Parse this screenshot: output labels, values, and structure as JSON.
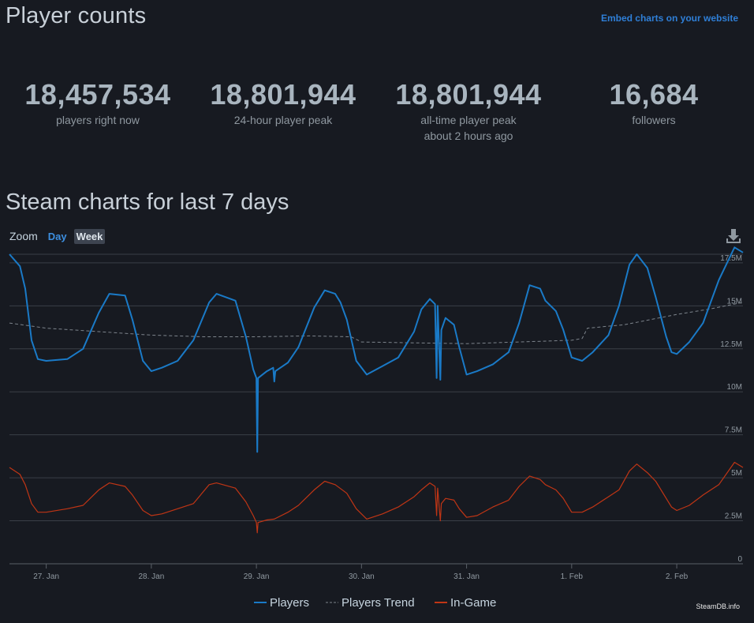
{
  "header": {
    "title": "Player counts",
    "embed_link": "Embed charts on your website"
  },
  "stats": [
    {
      "value": "18,457,534",
      "label": "players right now",
      "sub": ""
    },
    {
      "value": "18,801,944",
      "label": "24-hour player peak",
      "sub": ""
    },
    {
      "value": "18,801,944",
      "label": "all-time player peak",
      "sub": "about 2 hours ago"
    },
    {
      "value": "16,684",
      "label": "followers",
      "sub": ""
    }
  ],
  "section": {
    "title": "Steam charts for last 7 days",
    "zoom_label": "Zoom",
    "zoom_day": "Day",
    "zoom_week": "Week"
  },
  "chart_data": {
    "type": "line",
    "title": "Steam charts for last 7 days",
    "xlabel": "",
    "ylabel": "",
    "x_range": [
      26.65,
      33.63
    ],
    "ylim": [
      0,
      18000000
    ],
    "y_ticks": [
      0,
      2500000,
      5000000,
      7500000,
      10000000,
      12500000,
      15000000,
      17500000
    ],
    "y_tick_labels": [
      "0",
      "2.5M",
      "5M",
      "7.5M",
      "10M",
      "12.5M",
      "15M",
      "17.5M"
    ],
    "x_ticks": [
      27,
      28,
      29,
      30,
      31,
      32,
      33
    ],
    "x_tick_labels": [
      "27. Jan",
      "28. Jan",
      "29. Jan",
      "30. Jan",
      "31. Jan",
      "1. Feb",
      "2. Feb"
    ],
    "colors": {
      "players": "#1a7ac7",
      "trend": "#7d848c",
      "ingame": "#c03515",
      "grid": "#3a3f47"
    },
    "series": [
      {
        "name": "Players",
        "style": "solid",
        "points": [
          [
            26.65,
            18.0
          ],
          [
            26.75,
            17.3
          ],
          [
            26.8,
            16.0
          ],
          [
            26.86,
            13.0
          ],
          [
            26.92,
            11.9
          ],
          [
            27.0,
            11.8
          ],
          [
            27.2,
            11.9
          ],
          [
            27.35,
            12.5
          ],
          [
            27.5,
            14.6
          ],
          [
            27.6,
            15.7
          ],
          [
            27.75,
            15.6
          ],
          [
            27.82,
            14.2
          ],
          [
            27.92,
            11.8
          ],
          [
            28.0,
            11.2
          ],
          [
            28.1,
            11.4
          ],
          [
            28.25,
            11.8
          ],
          [
            28.4,
            13.0
          ],
          [
            28.55,
            15.2
          ],
          [
            28.62,
            15.7
          ],
          [
            28.8,
            15.3
          ],
          [
            28.9,
            13.2
          ],
          [
            28.97,
            11.3
          ],
          [
            29.0,
            10.8
          ],
          [
            29.008,
            6.5
          ],
          [
            29.016,
            10.8
          ],
          [
            29.1,
            11.2
          ],
          [
            29.16,
            11.4
          ],
          [
            29.17,
            10.6
          ],
          [
            29.18,
            11.2
          ],
          [
            29.3,
            11.7
          ],
          [
            29.4,
            12.6
          ],
          [
            29.55,
            14.9
          ],
          [
            29.65,
            15.9
          ],
          [
            29.75,
            15.7
          ],
          [
            29.8,
            15.2
          ],
          [
            29.86,
            14.2
          ],
          [
            29.95,
            11.8
          ],
          [
            30.05,
            11.0
          ],
          [
            30.2,
            11.5
          ],
          [
            30.35,
            12.0
          ],
          [
            30.5,
            13.5
          ],
          [
            30.57,
            14.8
          ],
          [
            30.65,
            15.4
          ],
          [
            30.7,
            15.1
          ],
          [
            30.715,
            10.8
          ],
          [
            30.725,
            15.0
          ],
          [
            30.75,
            10.7
          ],
          [
            30.76,
            13.6
          ],
          [
            30.8,
            14.3
          ],
          [
            30.88,
            13.9
          ],
          [
            30.93,
            12.6
          ],
          [
            31.0,
            11.0
          ],
          [
            31.1,
            11.2
          ],
          [
            31.25,
            11.6
          ],
          [
            31.4,
            12.3
          ],
          [
            31.5,
            14.0
          ],
          [
            31.6,
            16.2
          ],
          [
            31.7,
            16.0
          ],
          [
            31.75,
            15.3
          ],
          [
            31.85,
            14.7
          ],
          [
            31.92,
            13.6
          ],
          [
            32.0,
            12.0
          ],
          [
            32.1,
            11.8
          ],
          [
            32.2,
            12.3
          ],
          [
            32.35,
            13.3
          ],
          [
            32.45,
            15.0
          ],
          [
            32.55,
            17.4
          ],
          [
            32.62,
            18.0
          ],
          [
            32.72,
            17.2
          ],
          [
            32.8,
            15.5
          ],
          [
            32.9,
            13.2
          ],
          [
            32.95,
            12.3
          ],
          [
            33.0,
            12.2
          ],
          [
            33.12,
            12.9
          ],
          [
            33.25,
            14.0
          ],
          [
            33.4,
            16.5
          ],
          [
            33.55,
            18.4
          ],
          [
            33.63,
            18.1
          ]
        ]
      },
      {
        "name": "Players Trend",
        "style": "dashed",
        "points": [
          [
            26.65,
            14.0
          ],
          [
            27.0,
            13.7
          ],
          [
            27.5,
            13.5
          ],
          [
            28.0,
            13.3
          ],
          [
            28.5,
            13.2
          ],
          [
            29.0,
            13.2
          ],
          [
            29.5,
            13.25
          ],
          [
            29.9,
            13.2
          ],
          [
            30.0,
            12.9
          ],
          [
            30.5,
            12.85
          ],
          [
            31.0,
            12.8
          ],
          [
            31.5,
            12.9
          ],
          [
            32.0,
            13.0
          ],
          [
            32.1,
            13.1
          ],
          [
            32.15,
            13.7
          ],
          [
            32.5,
            13.9
          ],
          [
            33.0,
            14.5
          ],
          [
            33.3,
            14.8
          ],
          [
            33.63,
            15.2
          ]
        ]
      },
      {
        "name": "In-Game",
        "style": "solid",
        "points": [
          [
            26.65,
            5.6
          ],
          [
            26.75,
            5.2
          ],
          [
            26.8,
            4.6
          ],
          [
            26.86,
            3.5
          ],
          [
            26.92,
            3.0
          ],
          [
            27.0,
            3.0
          ],
          [
            27.2,
            3.2
          ],
          [
            27.35,
            3.4
          ],
          [
            27.5,
            4.3
          ],
          [
            27.6,
            4.7
          ],
          [
            27.75,
            4.5
          ],
          [
            27.82,
            4.0
          ],
          [
            27.92,
            3.1
          ],
          [
            28.0,
            2.8
          ],
          [
            28.1,
            2.9
          ],
          [
            28.25,
            3.2
          ],
          [
            28.4,
            3.5
          ],
          [
            28.55,
            4.6
          ],
          [
            28.62,
            4.7
          ],
          [
            28.8,
            4.4
          ],
          [
            28.9,
            3.6
          ],
          [
            28.97,
            2.8
          ],
          [
            29.0,
            2.4
          ],
          [
            29.008,
            1.8
          ],
          [
            29.016,
            2.4
          ],
          [
            29.1,
            2.55
          ],
          [
            29.17,
            2.6
          ],
          [
            29.3,
            3.0
          ],
          [
            29.4,
            3.4
          ],
          [
            29.55,
            4.3
          ],
          [
            29.65,
            4.8
          ],
          [
            29.75,
            4.6
          ],
          [
            29.86,
            4.1
          ],
          [
            29.95,
            3.2
          ],
          [
            30.05,
            2.6
          ],
          [
            30.2,
            2.9
          ],
          [
            30.35,
            3.3
          ],
          [
            30.5,
            3.9
          ],
          [
            30.57,
            4.3
          ],
          [
            30.65,
            4.7
          ],
          [
            30.7,
            4.5
          ],
          [
            30.715,
            2.8
          ],
          [
            30.725,
            4.4
          ],
          [
            30.75,
            2.5
          ],
          [
            30.76,
            3.5
          ],
          [
            30.8,
            3.8
          ],
          [
            30.88,
            3.7
          ],
          [
            30.93,
            3.2
          ],
          [
            31.0,
            2.7
          ],
          [
            31.1,
            2.8
          ],
          [
            31.25,
            3.3
          ],
          [
            31.4,
            3.7
          ],
          [
            31.5,
            4.5
          ],
          [
            31.6,
            5.1
          ],
          [
            31.7,
            4.9
          ],
          [
            31.75,
            4.6
          ],
          [
            31.85,
            4.3
          ],
          [
            31.92,
            3.8
          ],
          [
            32.0,
            3.0
          ],
          [
            32.1,
            3.0
          ],
          [
            32.2,
            3.3
          ],
          [
            32.35,
            3.9
          ],
          [
            32.45,
            4.3
          ],
          [
            32.55,
            5.4
          ],
          [
            32.62,
            5.8
          ],
          [
            32.72,
            5.3
          ],
          [
            32.8,
            4.8
          ],
          [
            32.9,
            3.8
          ],
          [
            32.95,
            3.3
          ],
          [
            33.0,
            3.1
          ],
          [
            33.12,
            3.4
          ],
          [
            33.25,
            4.0
          ],
          [
            33.4,
            4.6
          ],
          [
            33.55,
            5.9
          ],
          [
            33.63,
            5.6
          ]
        ]
      }
    ],
    "legend": [
      "Players",
      "Players Trend",
      "In-Game"
    ],
    "legend_position": "bottom-center",
    "credit": "SteamDB.info"
  }
}
